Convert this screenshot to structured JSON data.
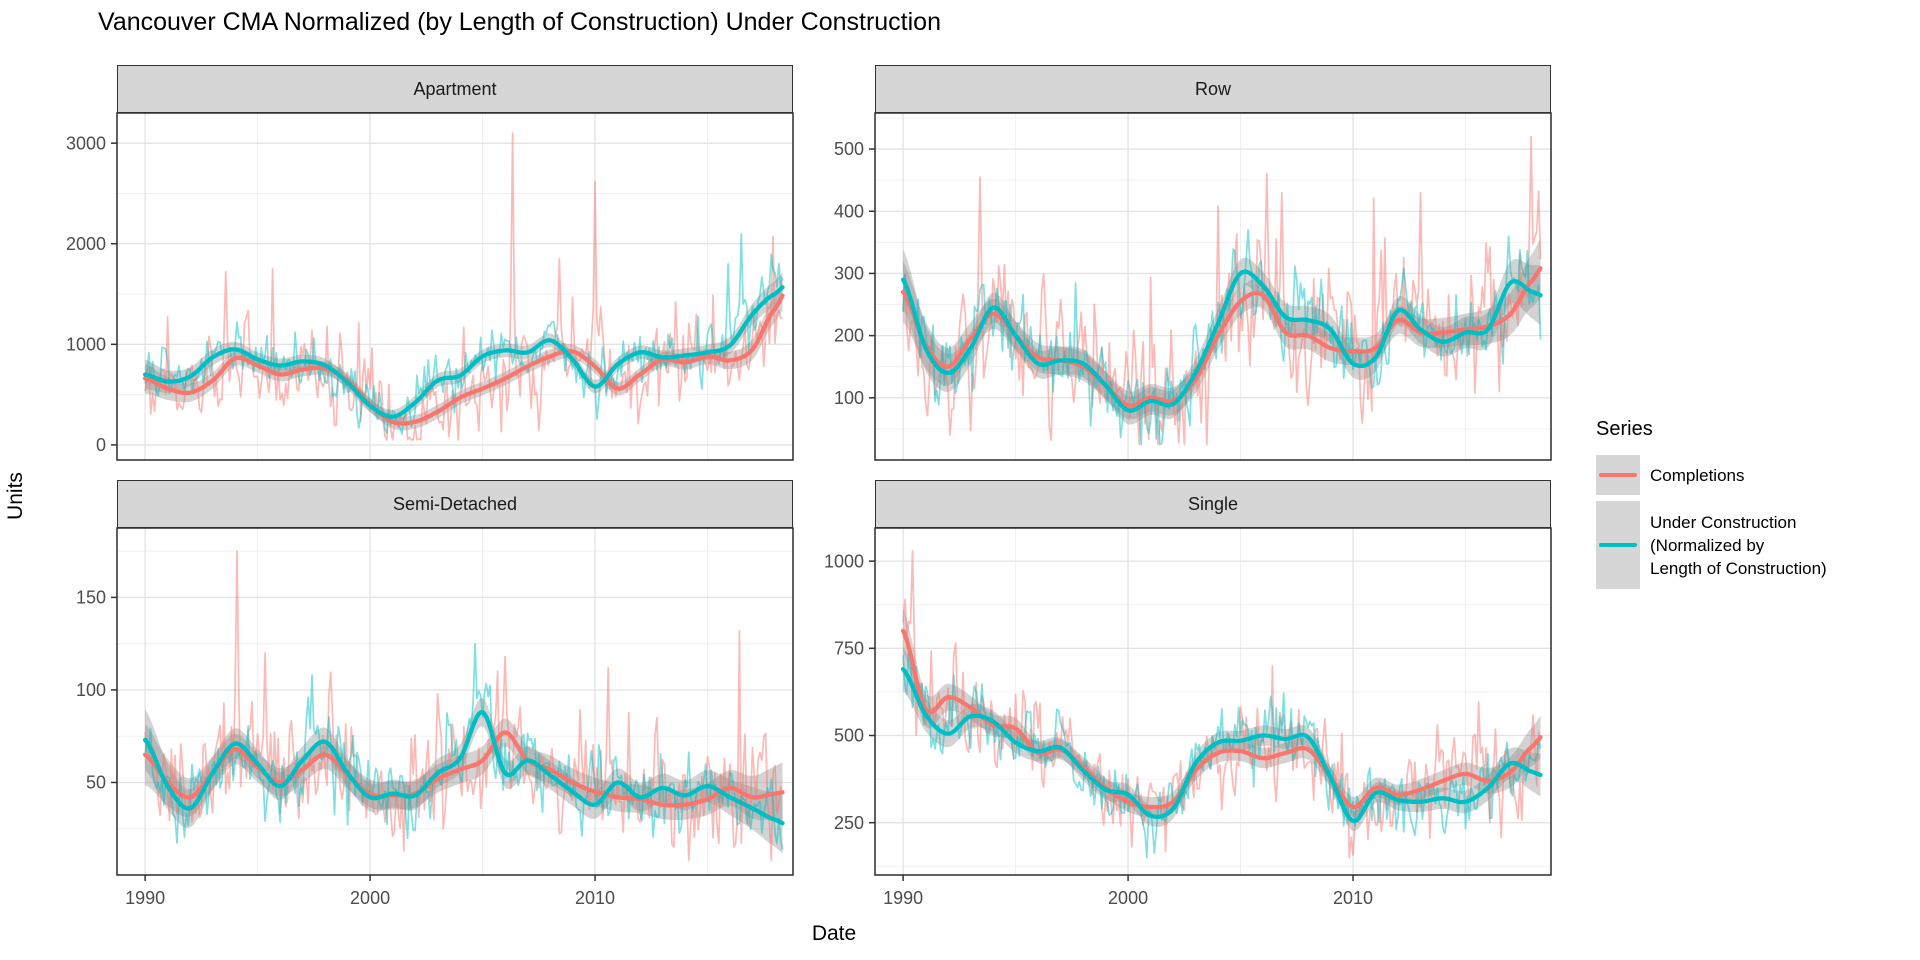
{
  "title": "Vancouver CMA Normalized (by Length of Construction) Under Construction",
  "axis": {
    "x_label": "Date",
    "y_label": "Units"
  },
  "legend": {
    "title": "Series",
    "entries": [
      {
        "label": "Completions",
        "color": "#F8766D"
      },
      {
        "label": "Under Construction (Normalized by Length of Construction)",
        "label_lines": [
          "Under Construction",
          "(Normalized by",
          "Length of Construction)"
        ],
        "color": "#00BFC4"
      }
    ]
  },
  "colors": {
    "completions": "#F8766D",
    "under_construction": "#00BFC4",
    "ribbon": "rgba(140,140,140,0.38)",
    "strip_fill": "#d6d6d6",
    "panel_border": "#2b2b2b",
    "grid_major": "#e3e3e3",
    "grid_minor": "#f0f0f0",
    "tick_text": "#4d4d4d"
  },
  "chart_data": {
    "type": "line",
    "title": "Vancouver CMA Normalized (by Length of Construction) Under Construction",
    "xlabel": "Date",
    "ylabel": "Units",
    "legend_position": "right",
    "grid": "on",
    "xlim": [
      1988.75,
      2018.8
    ],
    "x_ticks": [
      1990,
      2000,
      2010
    ],
    "x_minor": [
      1995,
      2005,
      2015
    ],
    "trend_years": [
      1990,
      1991,
      1992,
      1993,
      1994,
      1995,
      1996,
      1997,
      1998,
      1999,
      2000,
      2001,
      2002,
      2003,
      2004,
      2005,
      2006,
      2007,
      2008,
      2009,
      2010,
      2011,
      2012,
      2013,
      2014,
      2015,
      2016,
      2017,
      2018
    ],
    "facets": [
      {
        "label": "Apartment",
        "ylim": [
          -150,
          3300
        ],
        "y_ticks": [
          0,
          1000,
          2000,
          3000
        ],
        "y_minor": [
          500,
          1500,
          2500
        ],
        "band_halfwidth": 85,
        "raw_floor": 50,
        "series": [
          {
            "name": "Completions",
            "color": "#F8766D",
            "noise_sd": 190,
            "trend": [
              660,
              560,
              520,
              640,
              860,
              790,
              700,
              750,
              760,
              640,
              400,
              230,
              230,
              330,
              470,
              560,
              660,
              780,
              880,
              930,
              780,
              560,
              700,
              850,
              820,
              880,
              840,
              950,
              1350
            ],
            "spikes": [
              [
                1993.6,
                1720
              ],
              [
                2006.3,
                3100
              ],
              [
                2008.4,
                1850
              ],
              [
                2010.0,
                2620
              ]
            ]
          },
          {
            "name": "Under Construction (Normalized by Length of Construction)",
            "color": "#00BFC4",
            "noise_sd": 130,
            "trend": [
              700,
              630,
              680,
              870,
              950,
              850,
              790,
              830,
              790,
              620,
              390,
              280,
              420,
              640,
              690,
              880,
              940,
              920,
              1040,
              850,
              580,
              800,
              920,
              870,
              890,
              920,
              990,
              1300,
              1500
            ],
            "spikes": [
              [
                2015.9,
                1800
              ],
              [
                2016.5,
                2100
              ]
            ]
          }
        ]
      },
      {
        "label": "Row",
        "ylim": [
          0,
          558
        ],
        "y_ticks": [
          100,
          200,
          300,
          400,
          500
        ],
        "y_minor": [
          50,
          150,
          250,
          350,
          450,
          550
        ],
        "band_halfwidth": 28,
        "raw_floor": 25,
        "series": [
          {
            "name": "Completions",
            "color": "#F8766D",
            "noise_sd": 55,
            "trend": [
              270,
              185,
              150,
              195,
              235,
              200,
              165,
              160,
              150,
              120,
              88,
              100,
              95,
              130,
              200,
              255,
              265,
              205,
              200,
              180,
              175,
              180,
              225,
              205,
              205,
              210,
              215,
              235,
              290
            ],
            "spikes": [
              [
                1993.4,
                455
              ],
              [
                2006.2,
                460
              ],
              [
                2006.8,
                430
              ],
              [
                2013.0,
                430
              ],
              [
                2017.9,
                520
              ]
            ]
          },
          {
            "name": "Under Construction (Normalized by Length of Construction)",
            "color": "#00BFC4",
            "noise_sd": 36,
            "trend": [
              290,
              180,
              140,
              180,
              245,
              200,
              155,
              160,
              155,
              120,
              80,
              95,
              90,
              140,
              220,
              300,
              280,
              230,
              225,
              210,
              155,
              165,
              240,
              210,
              190,
              205,
              210,
              285,
              270
            ],
            "spikes": [
              [
                2005.3,
                370
              ],
              [
                2016.9,
                360
              ]
            ]
          }
        ]
      },
      {
        "label": "Semi-Detached",
        "ylim": [
          0,
          187.5
        ],
        "y_ticks": [
          50,
          100,
          150
        ],
        "y_minor": [
          25,
          75,
          125,
          175
        ],
        "band_halfwidth": 9.5,
        "raw_floor": 8,
        "series": [
          {
            "name": "Completions",
            "color": "#F8766D",
            "noise_sd": 16,
            "trend": [
              65,
              50,
              42,
              55,
              68,
              58,
              50,
              57,
              65,
              54,
              44,
              43,
              44,
              52,
              57,
              62,
              77,
              62,
              57,
              50,
              45,
              42,
              41,
              38,
              38,
              41,
              47,
              42,
              44
            ],
            "spikes": [
              [
                1994.1,
                175
              ],
              [
                1995.3,
                120
              ],
              [
                2006.0,
                118
              ],
              [
                2010.6,
                112
              ]
            ]
          },
          {
            "name": "Under Construction (Normalized by Length of Construction)",
            "color": "#00BFC4",
            "noise_sd": 11,
            "trend": [
              73,
              48,
              36,
              55,
              71,
              60,
              48,
              62,
              72,
              55,
              42,
              44,
              43,
              55,
              63,
              88,
              55,
              62,
              54,
              45,
              38,
              50,
              42,
              47,
              43,
              48,
              42,
              36,
              30
            ],
            "spikes": [
              [
                1997.4,
                108
              ],
              [
                2004.7,
                125
              ]
            ]
          }
        ]
      },
      {
        "label": "Single",
        "ylim": [
          100,
          1095
        ],
        "y_ticks": [
          250,
          500,
          750,
          1000
        ],
        "y_minor": [
          125,
          375,
          625,
          875
        ],
        "band_halfwidth": 36,
        "raw_floor": 150,
        "series": [
          {
            "name": "Completions",
            "color": "#F8766D",
            "noise_sd": 68,
            "trend": [
              800,
              575,
              610,
              580,
              530,
              520,
              450,
              460,
              410,
              350,
              310,
              295,
              310,
              400,
              450,
              455,
              435,
              450,
              460,
              380,
              295,
              350,
              330,
              345,
              370,
              390,
              370,
              395,
              470
            ],
            "spikes": [
              [
                1990.4,
                1030
              ]
            ]
          },
          {
            "name": "Under Construction (Normalized by Length of Construction)",
            "color": "#00BFC4",
            "noise_sd": 55,
            "trend": [
              690,
              560,
              505,
              555,
              540,
              480,
              455,
              465,
              400,
              345,
              330,
              270,
              290,
              420,
              480,
              485,
              500,
              490,
              495,
              380,
              255,
              335,
              315,
              310,
              320,
              310,
              350,
              420,
              395
            ],
            "spikes": []
          }
        ]
      }
    ]
  }
}
